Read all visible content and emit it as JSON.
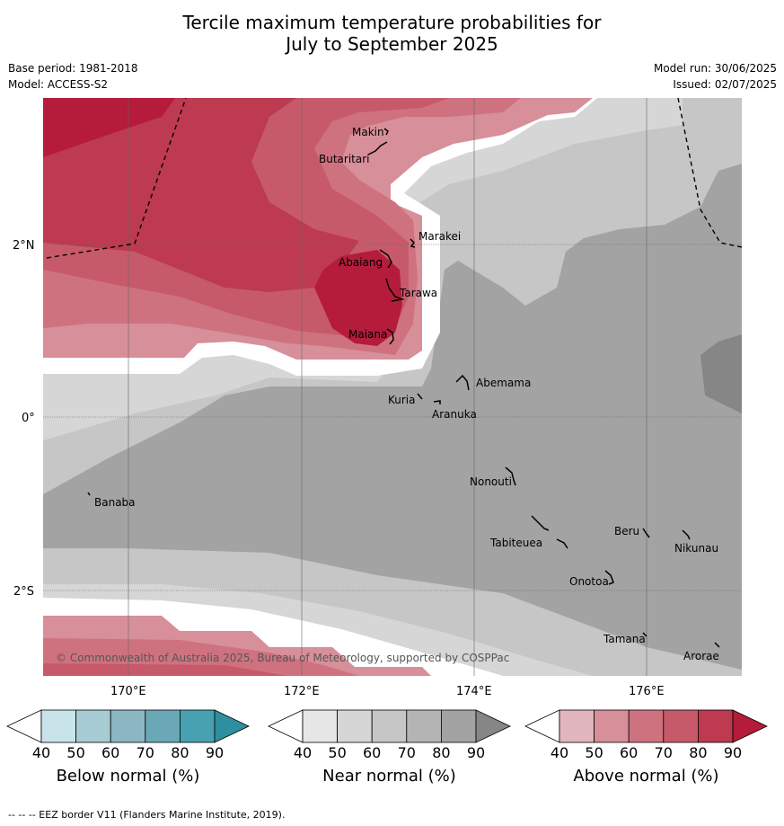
{
  "title": {
    "line1": "Tercile maximum temperature probabilities for",
    "line2": "July to September 2025"
  },
  "meta": {
    "base_period": "Base period: 1981-2018",
    "model": "Model: ACCESS-S2",
    "model_run": "Model run: 30/06/2025",
    "issued": "Issued: 02/07/2025"
  },
  "map": {
    "lat_labels": [
      "2°N",
      "0°",
      "2°S"
    ],
    "lon_labels": [
      "170°E",
      "172°E",
      "174°E",
      "176°E"
    ],
    "copyright": "© Commonwealth of Australia 2025, Bureau of Meteorology, supported by COSPPac",
    "places": [
      "Makin",
      "Butaritari",
      "Marakei",
      "Abaiang",
      "Tarawa",
      "Maiana",
      "Abemama",
      "Kuria",
      "Aranuka",
      "Nonouti",
      "Banaba",
      "Beru",
      "Tabiteuea",
      "Nikunau",
      "Onotoa",
      "Tamana",
      "Arorae"
    ]
  },
  "colorbars": [
    {
      "label": "Below normal (%)",
      "ticks": [
        "40",
        "50",
        "60",
        "70",
        "80",
        "90"
      ],
      "colors": [
        "#ffffff",
        "#c9e3ea",
        "#a7cbd3",
        "#8bb7c2",
        "#6aa8b7",
        "#48a1b1",
        "#2e8f9f"
      ]
    },
    {
      "label": "Near normal (%)",
      "ticks": [
        "40",
        "50",
        "60",
        "70",
        "80",
        "90"
      ],
      "colors": [
        "#ffffff",
        "#e6e6e6",
        "#d6d6d6",
        "#c6c6c6",
        "#b4b4b4",
        "#a3a3a3",
        "#868686"
      ]
    },
    {
      "label": "Above normal (%)",
      "ticks": [
        "40",
        "50",
        "60",
        "70",
        "80",
        "90"
      ],
      "colors": [
        "#ffffff",
        "#e2b6bf",
        "#d78f9a",
        "#cf727f",
        "#c75a6a",
        "#bd3a50",
        "#b51b3b"
      ]
    }
  ],
  "footer": "--  --  -- EEZ border V11 (Flanders Marine Institute, 2019)."
}
